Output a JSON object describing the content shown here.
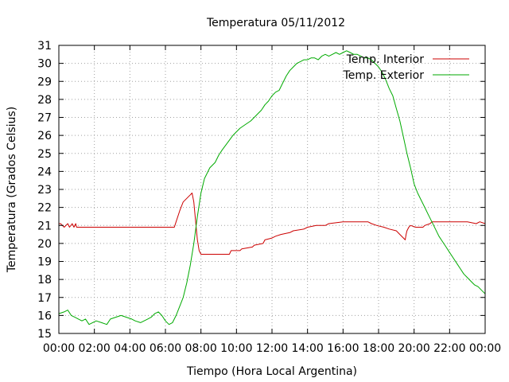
{
  "chart_data": {
    "type": "line",
    "title": "Temperatura 05/11/2012",
    "xlabel": "Tiempo (Hora Local Argentina)",
    "ylabel": "Temperatura (Grados Celsius)",
    "xlim": [
      0,
      24
    ],
    "ylim": [
      15,
      31
    ],
    "grid": true,
    "legend_position": "top-right",
    "x_tick_labels": [
      "00:00",
      "02:00",
      "04:00",
      "06:00",
      "08:00",
      "10:00",
      "12:00",
      "14:00",
      "16:00",
      "18:00",
      "20:00",
      "22:00",
      "00:00"
    ],
    "y_tick_labels": [
      "15",
      "16",
      "17",
      "18",
      "19",
      "20",
      "21",
      "22",
      "23",
      "24",
      "25",
      "26",
      "27",
      "28",
      "29",
      "30",
      "31"
    ],
    "series": [
      {
        "name": "Temp. Interior",
        "color": "#cc0000",
        "x": [
          0.0,
          0.1,
          0.3,
          0.5,
          0.6,
          0.75,
          0.85,
          0.95,
          1.0,
          1.2,
          2,
          3,
          4,
          5,
          6,
          6.5,
          6.6,
          6.8,
          7.0,
          7.2,
          7.4,
          7.5,
          7.6,
          7.7,
          7.8,
          7.9,
          8.0,
          8.2,
          9,
          9.6,
          9.7,
          10.2,
          10.3,
          10.9,
          11.0,
          11.5,
          11.6,
          12.0,
          12.2,
          12.5,
          13.0,
          13.2,
          13.8,
          14.0,
          14.5,
          15.0,
          15.2,
          16.0,
          17.0,
          17.4,
          17.6,
          17.9,
          18.3,
          18.6,
          19.0,
          19.2,
          19.4,
          19.5,
          19.55,
          19.6,
          19.7,
          19.8,
          20.1,
          20.3,
          20.5,
          20.6,
          20.9,
          21.0,
          21.5,
          22,
          23,
          23.5,
          23.7,
          24.0
        ],
        "values": [
          21.1,
          21.1,
          20.9,
          21.1,
          20.9,
          21.1,
          20.9,
          21.1,
          20.9,
          20.9,
          20.9,
          20.9,
          20.9,
          20.9,
          20.9,
          20.9,
          21.2,
          21.8,
          22.3,
          22.5,
          22.7,
          22.8,
          22.3,
          21.2,
          20.2,
          19.6,
          19.4,
          19.4,
          19.4,
          19.4,
          19.6,
          19.6,
          19.7,
          19.8,
          19.9,
          20.0,
          20.2,
          20.3,
          20.4,
          20.5,
          20.6,
          20.7,
          20.8,
          20.9,
          21.0,
          21.0,
          21.1,
          21.2,
          21.2,
          21.2,
          21.1,
          21.0,
          20.9,
          20.8,
          20.7,
          20.5,
          20.3,
          20.2,
          20.5,
          20.7,
          20.9,
          21.0,
          20.9,
          20.9,
          20.9,
          21.0,
          21.1,
          21.2,
          21.2,
          21.2,
          21.2,
          21.1,
          21.2,
          21.1
        ]
      },
      {
        "name": "Temp. Exterior",
        "color": "#00aa00",
        "x": [
          0.0,
          0.3,
          0.5,
          0.7,
          0.9,
          1.1,
          1.3,
          1.5,
          1.7,
          1.9,
          2.1,
          2.4,
          2.7,
          2.9,
          3.2,
          3.5,
          3.8,
          4.1,
          4.3,
          4.6,
          4.8,
          5.0,
          5.2,
          5.4,
          5.6,
          5.8,
          6.0,
          6.2,
          6.4,
          6.6,
          6.8,
          7.0,
          7.2,
          7.4,
          7.6,
          7.8,
          8.0,
          8.2,
          8.5,
          8.8,
          9.0,
          9.2,
          9.5,
          9.8,
          10.0,
          10.2,
          10.5,
          10.8,
          11.0,
          11.2,
          11.4,
          11.6,
          11.8,
          12.0,
          12.2,
          12.4,
          12.6,
          12.8,
          13.0,
          13.2,
          13.4,
          13.6,
          13.8,
          14.0,
          14.2,
          14.4,
          14.6,
          14.8,
          15.0,
          15.2,
          15.4,
          15.6,
          15.8,
          16.0,
          16.2,
          16.4,
          16.6,
          16.8,
          17.0,
          17.2,
          17.4,
          17.6,
          17.8,
          18.0,
          18.2,
          18.4,
          18.6,
          18.8,
          19.0,
          19.2,
          19.4,
          19.6,
          19.8,
          20.0,
          20.2,
          20.4,
          20.6,
          20.8,
          21.0,
          21.2,
          21.4,
          21.6,
          21.8,
          22.0,
          22.2,
          22.4,
          22.6,
          22.8,
          23.0,
          23.2,
          23.4,
          23.6,
          23.8,
          24.0
        ],
        "values": [
          16.1,
          16.2,
          16.3,
          16.0,
          15.9,
          15.8,
          15.7,
          15.8,
          15.5,
          15.6,
          15.7,
          15.6,
          15.5,
          15.8,
          15.9,
          16.0,
          15.9,
          15.8,
          15.7,
          15.6,
          15.7,
          15.8,
          15.9,
          16.1,
          16.2,
          16.0,
          15.7,
          15.5,
          15.6,
          16.0,
          16.5,
          17.0,
          17.8,
          18.8,
          20.0,
          21.5,
          22.8,
          23.6,
          24.2,
          24.5,
          24.9,
          25.2,
          25.6,
          26.0,
          26.2,
          26.4,
          26.6,
          26.8,
          27.0,
          27.2,
          27.4,
          27.7,
          27.9,
          28.2,
          28.4,
          28.5,
          28.9,
          29.3,
          29.6,
          29.8,
          30.0,
          30.1,
          30.2,
          30.2,
          30.3,
          30.3,
          30.2,
          30.4,
          30.5,
          30.4,
          30.5,
          30.6,
          30.5,
          30.6,
          30.7,
          30.6,
          30.5,
          30.5,
          30.4,
          30.3,
          30.3,
          30.2,
          30.0,
          29.8,
          29.5,
          29.1,
          28.6,
          28.2,
          27.5,
          26.8,
          25.9,
          25.0,
          24.2,
          23.3,
          22.8,
          22.4,
          22.0,
          21.6,
          21.2,
          20.8,
          20.4,
          20.1,
          19.8,
          19.5,
          19.2,
          18.9,
          18.6,
          18.3,
          18.1,
          17.9,
          17.7,
          17.6,
          17.4,
          17.2
        ]
      }
    ]
  }
}
